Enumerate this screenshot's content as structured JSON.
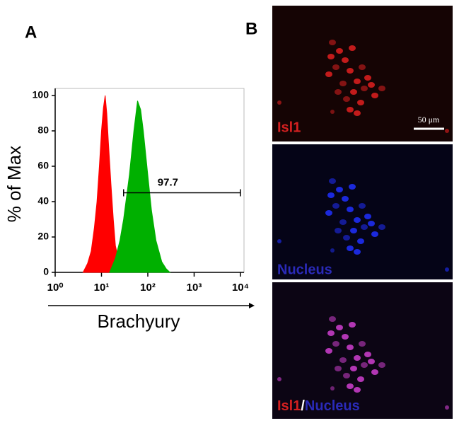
{
  "panel_labels": [
    "A",
    "B"
  ],
  "chart_data": {
    "type": "area",
    "y_label": "% of Max",
    "x_label": "Brachyury",
    "log_x": true,
    "xlim": [
      1,
      10000
    ],
    "xticks": [
      {
        "value": 1,
        "label": "10⁰"
      },
      {
        "value": 10,
        "label": "10¹"
      },
      {
        "value": 100,
        "label": "10²"
      },
      {
        "value": 1000,
        "label": "10³"
      },
      {
        "value": 10000,
        "label": "10⁴"
      }
    ],
    "ylim": [
      0,
      100
    ],
    "yticks": [
      0,
      20,
      40,
      60,
      80,
      100
    ],
    "series": [
      {
        "color": "#ff0000",
        "x": [
          4,
          5,
          6,
          7,
          8,
          9,
          10,
          11,
          12,
          13,
          14,
          16,
          18,
          20,
          25,
          30
        ],
        "values": [
          0,
          5,
          12,
          25,
          40,
          60,
          80,
          93,
          100,
          90,
          75,
          50,
          30,
          15,
          4,
          0
        ]
      },
      {
        "color": "#00b000",
        "x": [
          15,
          20,
          25,
          30,
          40,
          50,
          60,
          70,
          80,
          100,
          120,
          150,
          200,
          250,
          300
        ],
        "values": [
          0,
          8,
          18,
          30,
          55,
          80,
          97,
          92,
          80,
          55,
          35,
          18,
          6,
          2,
          0
        ]
      }
    ],
    "gate": {
      "label": "97.7",
      "x": [
        30,
        10000
      ],
      "y": 45
    }
  },
  "images": [
    {
      "label": "Isl1",
      "scale_bar": "50 μm"
    },
    {
      "label": "Nucleus"
    },
    {
      "label_parts": [
        "Isl1",
        "/",
        "Nucleus"
      ]
    }
  ]
}
